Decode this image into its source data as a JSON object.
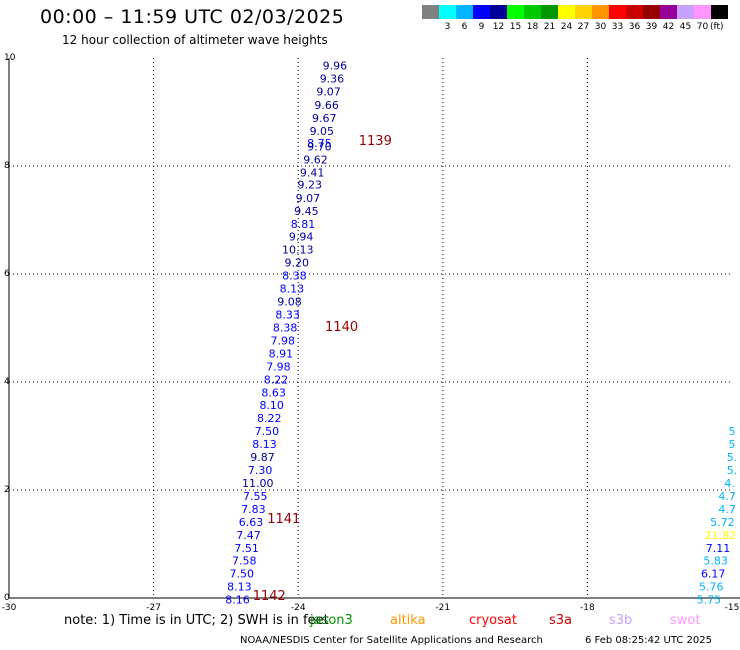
{
  "header": {
    "title": "00:00 – 11:59 UTC 02/03/2025",
    "subtitle": "12 hour collection of altimeter wave heights"
  },
  "color_scale": {
    "unit": "(ft)",
    "entries": [
      {
        "label": "",
        "color": "#808080"
      },
      {
        "label": "3",
        "color": "#00ffff"
      },
      {
        "label": "6",
        "color": "#00b4ff"
      },
      {
        "label": "9",
        "color": "#0000ff"
      },
      {
        "label": "12",
        "color": "#00009a"
      },
      {
        "label": "15",
        "color": "#00ff00"
      },
      {
        "label": "18",
        "color": "#00c800"
      },
      {
        "label": "21",
        "color": "#009600"
      },
      {
        "label": "24",
        "color": "#ffff00"
      },
      {
        "label": "27",
        "color": "#ffd200"
      },
      {
        "label": "30",
        "color": "#ff9600"
      },
      {
        "label": "33",
        "color": "#ff0000"
      },
      {
        "label": "36",
        "color": "#c80000"
      },
      {
        "label": "39",
        "color": "#960000"
      },
      {
        "label": "42",
        "color": "#960096"
      },
      {
        "label": "45",
        "color": "#c8a0ff"
      },
      {
        "label": "70",
        "color": "#ff96ff"
      },
      {
        "label": "",
        "color": "#000000"
      }
    ]
  },
  "map": {
    "lon_range": [
      -30,
      -15
    ],
    "lat_range": [
      0,
      10
    ],
    "x_ticks": [
      "-30",
      "-27",
      "-24",
      "-21",
      "-18",
      "-15"
    ],
    "y_ticks": [
      "0",
      "2",
      "4",
      "6",
      "8",
      "10"
    ]
  },
  "chart_data": {
    "type": "scatter",
    "xlim": [
      -30,
      -15
    ],
    "ylim": [
      0,
      10
    ],
    "grid": true,
    "tracks": [
      {
        "points": [
          {
            "lon": -23.24,
            "lat": 9.86,
            "value": "9.96"
          },
          {
            "lon": -23.3,
            "lat": 9.62,
            "value": "9.36"
          },
          {
            "lon": -23.37,
            "lat": 9.38,
            "value": "9.07"
          },
          {
            "lon": -23.41,
            "lat": 9.13,
            "value": "9.66"
          },
          {
            "lon": -23.46,
            "lat": 8.89,
            "value": "9.67"
          },
          {
            "lon": -23.51,
            "lat": 8.65,
            "value": "9.05"
          },
          {
            "lon": -23.56,
            "lat": 8.43,
            "value": "8.75"
          },
          {
            "lon": -23.56,
            "lat": 8.36,
            "value": "9.70"
          },
          {
            "lon": -23.64,
            "lat": 8.12,
            "value": "9.62"
          },
          {
            "lon": -23.71,
            "lat": 7.88,
            "value": "9.41"
          },
          {
            "lon": -23.76,
            "lat": 7.66,
            "value": "9.23"
          },
          {
            "lon": -23.8,
            "lat": 7.41,
            "value": "9.07"
          },
          {
            "lon": -23.83,
            "lat": 7.17,
            "value": "9.45"
          },
          {
            "lon": -23.9,
            "lat": 6.93,
            "value": "8.81"
          },
          {
            "lon": -23.94,
            "lat": 6.69,
            "value": "9.94"
          },
          {
            "lon": -24.01,
            "lat": 6.45,
            "value": "10.13"
          },
          {
            "lon": -24.03,
            "lat": 6.21,
            "value": "9.20"
          },
          {
            "lon": -24.08,
            "lat": 5.97,
            "value": "8.38"
          },
          {
            "lon": -24.13,
            "lat": 5.73,
            "value": "8.13"
          },
          {
            "lon": -24.18,
            "lat": 5.49,
            "value": "9.08"
          },
          {
            "lon": -24.22,
            "lat": 5.25,
            "value": "8.33"
          },
          {
            "lon": -24.27,
            "lat": 5.01,
            "value": "8.38"
          },
          {
            "lon": -24.32,
            "lat": 4.77,
            "value": "7.98"
          },
          {
            "lon": -24.36,
            "lat": 4.53,
            "value": "8.91"
          },
          {
            "lon": -24.41,
            "lat": 4.29,
            "value": "7.98"
          },
          {
            "lon": -24.46,
            "lat": 4.05,
            "value": "8.22"
          },
          {
            "lon": -24.51,
            "lat": 3.81,
            "value": "8.63"
          },
          {
            "lon": -24.55,
            "lat": 3.57,
            "value": "8.10"
          },
          {
            "lon": -24.6,
            "lat": 3.33,
            "value": "8.22"
          },
          {
            "lon": -24.65,
            "lat": 3.09,
            "value": "7.50"
          },
          {
            "lon": -24.7,
            "lat": 2.85,
            "value": "8.13"
          },
          {
            "lon": -24.74,
            "lat": 2.61,
            "value": "9.87"
          },
          {
            "lon": -24.79,
            "lat": 2.37,
            "value": "7.30"
          },
          {
            "lon": -24.84,
            "lat": 2.13,
            "value": "11.00"
          },
          {
            "lon": -24.89,
            "lat": 1.89,
            "value": "7.55"
          },
          {
            "lon": -24.93,
            "lat": 1.65,
            "value": "7.83"
          },
          {
            "lon": -24.98,
            "lat": 1.41,
            "value": "6.63"
          },
          {
            "lon": -25.03,
            "lat": 1.17,
            "value": "7.47"
          },
          {
            "lon": -25.07,
            "lat": 0.93,
            "value": "7.51"
          },
          {
            "lon": -25.12,
            "lat": 0.69,
            "value": "7.58"
          },
          {
            "lon": -25.17,
            "lat": 0.45,
            "value": "7.50"
          },
          {
            "lon": -25.22,
            "lat": 0.21,
            "value": "8.13"
          },
          {
            "lon": -25.26,
            "lat": -0.03,
            "value": "8.16"
          }
        ]
      },
      {
        "points": [
          {
            "lon": -15.0,
            "lat": 3.09,
            "value": "5"
          },
          {
            "lon": -15.0,
            "lat": 2.85,
            "value": "5"
          },
          {
            "lon": -15.0,
            "lat": 2.61,
            "value": "5."
          },
          {
            "lon": -15.0,
            "lat": 2.37,
            "value": "5."
          },
          {
            "lon": -15.05,
            "lat": 2.13,
            "value": "4."
          },
          {
            "lon": -15.1,
            "lat": 1.89,
            "value": "4.7"
          },
          {
            "lon": -15.1,
            "lat": 1.65,
            "value": "4.7"
          },
          {
            "lon": -15.2,
            "lat": 1.41,
            "value": "5.72"
          },
          {
            "lon": -15.24,
            "lat": 1.17,
            "value": "21.82"
          },
          {
            "lon": -15.29,
            "lat": 0.93,
            "value": "7.11"
          },
          {
            "lon": -15.34,
            "lat": 0.69,
            "value": "5.83"
          },
          {
            "lon": -15.39,
            "lat": 0.45,
            "value": "6.17"
          },
          {
            "lon": -15.43,
            "lat": 0.21,
            "value": "5.76"
          },
          {
            "lon": -15.48,
            "lat": -0.03,
            "value": "5.75"
          }
        ]
      }
    ],
    "track_labels": [
      {
        "lon": -22.4,
        "lat": 8.48,
        "text": "1139"
      },
      {
        "lon": -23.1,
        "lat": 5.04,
        "text": "1140"
      },
      {
        "lon": -24.3,
        "lat": 1.48,
        "text": "1141"
      },
      {
        "lon": -24.6,
        "lat": 0.06,
        "text": "1142"
      }
    ]
  },
  "footer": {
    "note": "note:  1) Time is in UTC;  2) SWH is in feet",
    "satellites": [
      {
        "name": "jason3",
        "color": "#009600",
        "offset": 246
      },
      {
        "name": "altika",
        "color": "#ff9600",
        "offset": 326
      },
      {
        "name": "cryosat",
        "color": "#ff0000",
        "offset": 405
      },
      {
        "name": "s3a",
        "color": "#c80000",
        "offset": 485
      },
      {
        "name": "s3b",
        "color": "#c8a0ff",
        "offset": 545
      },
      {
        "name": "swot",
        "color": "#ff96ff",
        "offset": 606
      }
    ],
    "organization": "NOAA/NESDIS Center for Satellite Applications and Research",
    "generated": "6 Feb 08:25:42 UTC 2025"
  }
}
